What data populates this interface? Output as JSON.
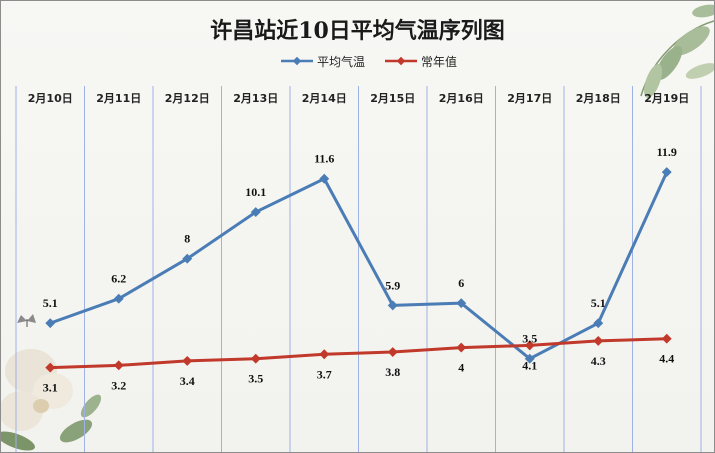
{
  "chart_data": {
    "type": "line",
    "title": "许昌站近10日平均气温序列图",
    "categories": [
      "2月10日",
      "2月11日",
      "2月12日",
      "2月13日",
      "2月14日",
      "2月15日",
      "2月16日",
      "2月17日",
      "2月18日",
      "2月19日"
    ],
    "series": [
      {
        "name": "平均气温",
        "color": "#4a7cb5",
        "values": [
          5.1,
          6.2,
          8,
          10.1,
          11.6,
          5.9,
          6,
          3.5,
          5.1,
          11.9
        ],
        "labels": [
          "5.1",
          "6.2",
          "8",
          "10.1",
          "11.6",
          "5.9",
          "6",
          "3.5",
          "5.1",
          "11.9"
        ]
      },
      {
        "name": "常年值",
        "color": "#c0392b",
        "values": [
          3.1,
          3.2,
          3.4,
          3.5,
          3.7,
          3.8,
          4,
          4.1,
          4.3,
          4.4
        ],
        "labels": [
          "3.1",
          "3.2",
          "3.4",
          "3.5",
          "3.7",
          "3.8",
          "4",
          "4.1",
          "4.3",
          "4.4"
        ]
      }
    ],
    "grid": true,
    "gridline_color": "#9fb2e6",
    "legend_position": "top",
    "category_axis_position": "top"
  }
}
